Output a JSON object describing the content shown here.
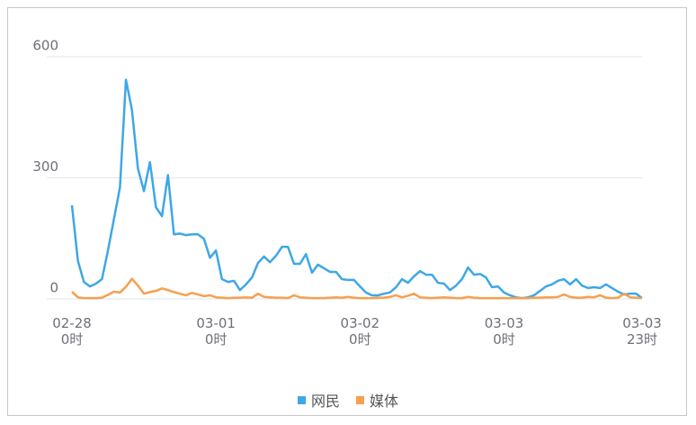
{
  "chart_data": {
    "type": "line",
    "categories": [
      "02-28\n0时",
      null,
      null,
      null,
      null,
      null,
      null,
      null,
      null,
      null,
      null,
      null,
      null,
      null,
      null,
      null,
      null,
      null,
      null,
      null,
      null,
      null,
      null,
      null,
      "03-01\n0时",
      null,
      null,
      null,
      null,
      null,
      null,
      null,
      null,
      null,
      null,
      null,
      null,
      null,
      null,
      null,
      null,
      null,
      null,
      null,
      null,
      null,
      null,
      null,
      "03-02\n0时",
      null,
      null,
      null,
      null,
      null,
      null,
      null,
      null,
      null,
      null,
      null,
      null,
      null,
      null,
      null,
      null,
      null,
      null,
      null,
      null,
      null,
      null,
      null,
      "03-03\n0时",
      null,
      null,
      null,
      null,
      null,
      null,
      null,
      null,
      null,
      null,
      null,
      null,
      null,
      null,
      null,
      null,
      null,
      null,
      null,
      null,
      null,
      null,
      "03-03\n23时"
    ],
    "series": [
      {
        "name": "网民",
        "color": "#3fa7e6",
        "values": [
          232,
          94,
          42,
          31,
          38,
          49,
          120,
          198,
          276,
          543,
          468,
          323,
          267,
          339,
          227,
          205,
          307,
          160,
          162,
          158,
          160,
          160,
          149,
          102,
          120,
          49,
          42,
          45,
          22,
          36,
          53,
          89,
          105,
          91,
          107,
          129,
          129,
          87,
          87,
          111,
          65,
          85,
          76,
          67,
          67,
          49,
          47,
          47,
          31,
          16,
          9,
          9,
          13,
          16,
          29,
          49,
          40,
          56,
          69,
          60,
          60,
          40,
          38,
          22,
          33,
          49,
          78,
          60,
          62,
          53,
          29,
          31,
          16,
          9,
          4,
          2,
          4,
          9,
          20,
          31,
          36,
          45,
          49,
          36,
          49,
          33,
          27,
          29,
          27,
          36,
          27,
          18,
          11,
          13,
          13,
          2
        ]
      },
      {
        "name": "媒体",
        "color": "#f5a04f",
        "values": [
          18,
          4,
          2,
          2,
          2,
          3,
          10,
          18,
          16,
          30,
          50,
          33,
          13,
          17,
          20,
          26,
          22,
          17,
          13,
          9,
          15,
          11,
          7,
          9,
          4,
          3,
          2,
          3,
          3,
          4,
          3,
          13,
          5,
          4,
          3,
          3,
          2,
          9,
          4,
          3,
          2,
          2,
          2,
          3,
          4,
          3,
          5,
          3,
          2,
          2,
          2,
          3,
          3,
          5,
          9,
          4,
          8,
          13,
          4,
          3,
          2,
          3,
          4,
          3,
          2,
          2,
          5,
          3,
          2,
          2,
          2,
          2,
          2,
          2,
          2,
          2,
          2,
          3,
          3,
          4,
          4,
          5,
          11,
          5,
          3,
          3,
          5,
          4,
          9,
          3,
          2,
          3,
          13,
          4,
          3,
          2
        ]
      }
    ],
    "ylim": [
      0,
      600
    ],
    "yticks": [
      0,
      300,
      600
    ],
    "grid": true,
    "legend": "bottom"
  }
}
